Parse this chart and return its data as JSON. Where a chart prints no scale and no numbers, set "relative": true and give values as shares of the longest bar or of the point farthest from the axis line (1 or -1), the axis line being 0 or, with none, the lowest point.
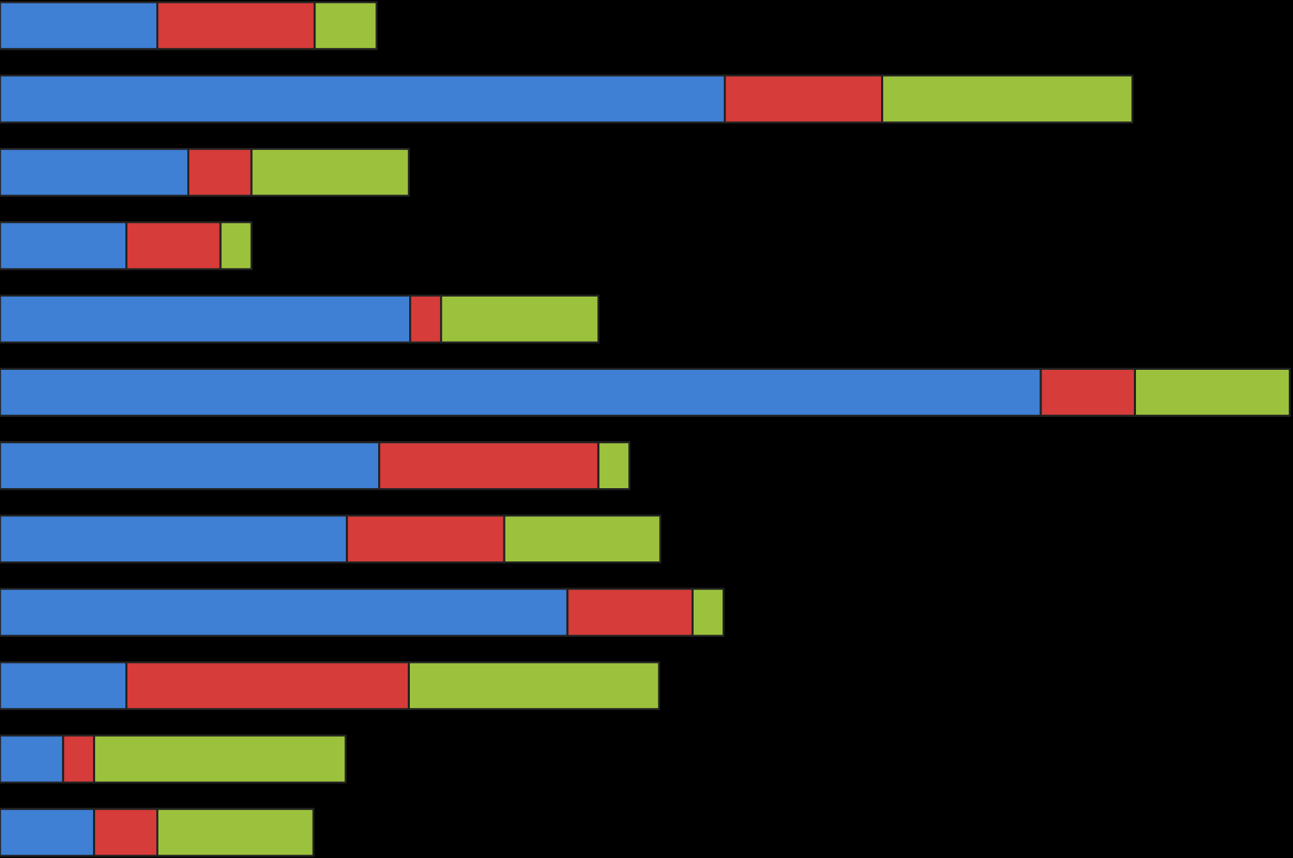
{
  "chart_data": {
    "type": "bar",
    "orientation": "horizontal",
    "stacked": true,
    "relative": true,
    "categories": [
      null,
      null,
      null,
      null,
      null,
      null,
      null,
      null,
      null,
      null,
      null,
      null
    ],
    "series": [
      {
        "color": "#3f7fd4",
        "values": [
          0.122,
          0.562,
          0.146,
          0.098,
          0.318,
          0.807,
          0.294,
          0.269,
          0.44,
          0.098,
          0.049,
          0.073
        ]
      },
      {
        "color": "#d63c3a",
        "values": [
          0.122,
          0.122,
          0.049,
          0.073,
          0.024,
          0.073,
          0.17,
          0.122,
          0.097,
          0.219,
          0.024,
          0.049
        ]
      },
      {
        "color": "#9cc23d",
        "values": [
          0.048,
          0.194,
          0.122,
          0.024,
          0.122,
          0.12,
          0.024,
          0.121,
          0.024,
          0.194,
          0.195,
          0.121
        ]
      }
    ]
  }
}
